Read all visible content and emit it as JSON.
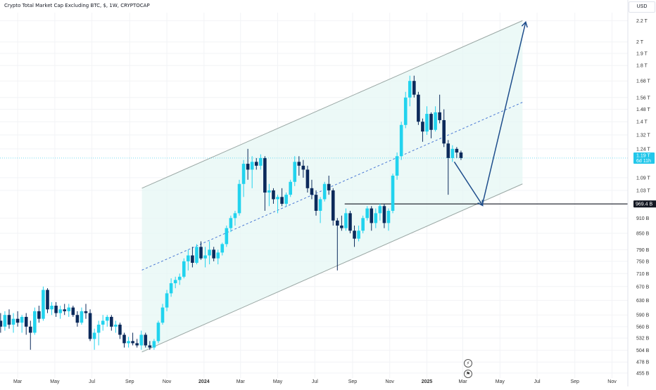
{
  "header": {
    "title": "Crypto Total Market Cap Excluding BTC, $, 1W, CRYPTOCAP",
    "currency": "USD"
  },
  "colors": {
    "up": "#22d3ee",
    "down": "#0c2a5b",
    "channel_fill": "#e6f7f4",
    "channel_line": "#9aa7a4",
    "mid_line": "#4a78d4",
    "arrow": "#1f4e8c",
    "price_badge": "#22c7ea",
    "level_badge": "#131722",
    "grid": "#f2f3f6"
  },
  "footer": {
    "icon_top": "compass-icon",
    "icon_bottom": "flag-icon"
  },
  "chart_data": {
    "type": "candlestick",
    "title": "Crypto Total Market Cap Excluding BTC, $, 1W, CRYPTOCAP",
    "y_scale": "log",
    "y_unit": "USD",
    "ylim": [
      445,
      2280
    ],
    "y_ticks": [
      {
        "v": 455,
        "label": "455 B"
      },
      {
        "v": 478,
        "label": "478 B"
      },
      {
        "v": 504,
        "label": "504 B"
      },
      {
        "v": 532,
        "label": "532 B"
      },
      {
        "v": 560,
        "label": "560 B"
      },
      {
        "v": 590,
        "label": "590 B"
      },
      {
        "v": 630,
        "label": "630 B"
      },
      {
        "v": 670,
        "label": "670 B"
      },
      {
        "v": 710,
        "label": "710 B"
      },
      {
        "v": 750,
        "label": "750 B"
      },
      {
        "v": 790,
        "label": "790 B"
      },
      {
        "v": 850,
        "label": "850 B"
      },
      {
        "v": 910,
        "label": "910 B"
      },
      {
        "v": 1030,
        "label": "1.03 T"
      },
      {
        "v": 1090,
        "label": "1.09 T"
      },
      {
        "v": 1240,
        "label": "1.24 T"
      },
      {
        "v": 1320,
        "label": "1.32 T"
      },
      {
        "v": 1400,
        "label": "1.4 T"
      },
      {
        "v": 1480,
        "label": "1.48 T"
      },
      {
        "v": 1560,
        "label": "1.56 T"
      },
      {
        "v": 1680,
        "label": "1.68 T"
      },
      {
        "v": 1800,
        "label": "1.8 T"
      },
      {
        "v": 1900,
        "label": "1.9 T"
      },
      {
        "v": 2000,
        "label": "2 T"
      },
      {
        "v": 2200,
        "label": "2.2 T"
      }
    ],
    "x_ticks": [
      {
        "date": "2023-03-01",
        "label": "Mar"
      },
      {
        "date": "2023-05-01",
        "label": "May"
      },
      {
        "date": "2023-07-01",
        "label": "Jul"
      },
      {
        "date": "2023-09-01",
        "label": "Sep"
      },
      {
        "date": "2023-11-01",
        "label": "Nov"
      },
      {
        "date": "2024-01-01",
        "label": "2024",
        "bold": true
      },
      {
        "date": "2024-03-01",
        "label": "Mar"
      },
      {
        "date": "2024-05-01",
        "label": "May"
      },
      {
        "date": "2024-07-01",
        "label": "Jul"
      },
      {
        "date": "2024-09-01",
        "label": "Sep"
      },
      {
        "date": "2024-11-01",
        "label": "Nov"
      },
      {
        "date": "2025-01-01",
        "label": "2025",
        "bold": true
      },
      {
        "date": "2025-03-01",
        "label": "Mar"
      },
      {
        "date": "2025-05-01",
        "label": "May"
      },
      {
        "date": "2025-07-01",
        "label": "Jul"
      },
      {
        "date": "2025-09-01",
        "label": "Sep"
      },
      {
        "date": "2025-11-01",
        "label": "Nov"
      }
    ],
    "xlim": [
      "2023-01-31",
      "2025-11-27"
    ],
    "current_price": {
      "value": 1190,
      "label": "1.19 T",
      "sublabel": "6d 11h"
    },
    "level": {
      "value": 969.4,
      "label": "969.4 B",
      "from": "2024-08-19"
    },
    "channel": {
      "lower_start": {
        "date": "2023-09-21",
        "value": 500
      },
      "lower_end": {
        "date": "2025-06-07",
        "value": 1060
      },
      "upper_start": {
        "date": "2023-09-21",
        "value": 1040
      },
      "upper_end": {
        "date": "2025-06-07",
        "value": 2200
      }
    },
    "projection": [
      {
        "date": "2025-02-15",
        "value": 1170
      },
      {
        "date": "2025-04-02",
        "value": 965
      },
      {
        "date": "2025-06-12",
        "value": 2180
      }
    ],
    "candles": [
      {
        "t": "2023-02-01",
        "o": 575,
        "h": 595,
        "l": 545,
        "c": 560
      },
      {
        "t": "2023-02-08",
        "o": 560,
        "h": 600,
        "l": 550,
        "c": 590
      },
      {
        "t": "2023-02-15",
        "o": 590,
        "h": 605,
        "l": 555,
        "c": 565
      },
      {
        "t": "2023-02-22",
        "o": 565,
        "h": 595,
        "l": 545,
        "c": 580
      },
      {
        "t": "2023-03-01",
        "o": 580,
        "h": 600,
        "l": 560,
        "c": 570
      },
      {
        "t": "2023-03-08",
        "o": 570,
        "h": 590,
        "l": 545,
        "c": 585
      },
      {
        "t": "2023-03-15",
        "o": 585,
        "h": 595,
        "l": 540,
        "c": 560
      },
      {
        "t": "2023-03-22",
        "o": 560,
        "h": 575,
        "l": 505,
        "c": 545
      },
      {
        "t": "2023-03-29",
        "o": 545,
        "h": 610,
        "l": 540,
        "c": 600
      },
      {
        "t": "2023-04-05",
        "o": 600,
        "h": 615,
        "l": 570,
        "c": 580
      },
      {
        "t": "2023-04-12",
        "o": 580,
        "h": 670,
        "l": 575,
        "c": 660
      },
      {
        "t": "2023-04-19",
        "o": 660,
        "h": 665,
        "l": 595,
        "c": 605
      },
      {
        "t": "2023-04-26",
        "o": 605,
        "h": 625,
        "l": 590,
        "c": 615
      },
      {
        "t": "2023-05-03",
        "o": 615,
        "h": 625,
        "l": 585,
        "c": 595
      },
      {
        "t": "2023-05-10",
        "o": 595,
        "h": 615,
        "l": 580,
        "c": 605
      },
      {
        "t": "2023-05-17",
        "o": 605,
        "h": 620,
        "l": 590,
        "c": 600
      },
      {
        "t": "2023-05-24",
        "o": 600,
        "h": 620,
        "l": 585,
        "c": 610
      },
      {
        "t": "2023-05-31",
        "o": 610,
        "h": 615,
        "l": 585,
        "c": 590
      },
      {
        "t": "2023-06-07",
        "o": 590,
        "h": 600,
        "l": 560,
        "c": 570
      },
      {
        "t": "2023-06-14",
        "o": 570,
        "h": 610,
        "l": 565,
        "c": 600
      },
      {
        "t": "2023-06-21",
        "o": 600,
        "h": 620,
        "l": 580,
        "c": 595
      },
      {
        "t": "2023-06-28",
        "o": 595,
        "h": 605,
        "l": 525,
        "c": 530
      },
      {
        "t": "2023-07-05",
        "o": 530,
        "h": 555,
        "l": 505,
        "c": 545
      },
      {
        "t": "2023-07-12",
        "o": 545,
        "h": 575,
        "l": 515,
        "c": 565
      },
      {
        "t": "2023-07-19",
        "o": 565,
        "h": 590,
        "l": 550,
        "c": 575
      },
      {
        "t": "2023-07-26",
        "o": 575,
        "h": 590,
        "l": 560,
        "c": 585
      },
      {
        "t": "2023-08-02",
        "o": 585,
        "h": 590,
        "l": 550,
        "c": 560
      },
      {
        "t": "2023-08-09",
        "o": 560,
        "h": 575,
        "l": 545,
        "c": 565
      },
      {
        "t": "2023-08-16",
        "o": 565,
        "h": 570,
        "l": 530,
        "c": 540
      },
      {
        "t": "2023-08-23",
        "o": 540,
        "h": 545,
        "l": 510,
        "c": 520
      },
      {
        "t": "2023-08-30",
        "o": 520,
        "h": 535,
        "l": 510,
        "c": 525
      },
      {
        "t": "2023-09-06",
        "o": 525,
        "h": 545,
        "l": 515,
        "c": 520
      },
      {
        "t": "2023-09-13",
        "o": 520,
        "h": 530,
        "l": 510,
        "c": 515
      },
      {
        "t": "2023-09-20",
        "o": 515,
        "h": 550,
        "l": 505,
        "c": 540
      },
      {
        "t": "2023-09-27",
        "o": 540,
        "h": 545,
        "l": 510,
        "c": 515
      },
      {
        "t": "2023-10-04",
        "o": 515,
        "h": 525,
        "l": 505,
        "c": 510
      },
      {
        "t": "2023-10-11",
        "o": 510,
        "h": 530,
        "l": 505,
        "c": 525
      },
      {
        "t": "2023-10-18",
        "o": 525,
        "h": 575,
        "l": 520,
        "c": 570
      },
      {
        "t": "2023-10-25",
        "o": 570,
        "h": 620,
        "l": 565,
        "c": 610
      },
      {
        "t": "2023-11-01",
        "o": 610,
        "h": 660,
        "l": 600,
        "c": 650
      },
      {
        "t": "2023-11-08",
        "o": 650,
        "h": 695,
        "l": 640,
        "c": 680
      },
      {
        "t": "2023-11-15",
        "o": 680,
        "h": 700,
        "l": 665,
        "c": 690
      },
      {
        "t": "2023-11-22",
        "o": 690,
        "h": 710,
        "l": 675,
        "c": 700
      },
      {
        "t": "2023-11-29",
        "o": 700,
        "h": 760,
        "l": 695,
        "c": 750
      },
      {
        "t": "2023-12-06",
        "o": 750,
        "h": 790,
        "l": 720,
        "c": 770
      },
      {
        "t": "2023-12-13",
        "o": 770,
        "h": 800,
        "l": 730,
        "c": 745
      },
      {
        "t": "2023-12-20",
        "o": 745,
        "h": 810,
        "l": 740,
        "c": 800
      },
      {
        "t": "2023-12-27",
        "o": 800,
        "h": 820,
        "l": 755,
        "c": 760
      },
      {
        "t": "2024-01-03",
        "o": 760,
        "h": 800,
        "l": 730,
        "c": 770
      },
      {
        "t": "2024-01-10",
        "o": 770,
        "h": 820,
        "l": 740,
        "c": 790
      },
      {
        "t": "2024-01-17",
        "o": 790,
        "h": 800,
        "l": 750,
        "c": 760
      },
      {
        "t": "2024-01-24",
        "o": 760,
        "h": 790,
        "l": 740,
        "c": 780
      },
      {
        "t": "2024-01-31",
        "o": 780,
        "h": 815,
        "l": 770,
        "c": 810
      },
      {
        "t": "2024-02-07",
        "o": 810,
        "h": 880,
        "l": 800,
        "c": 870
      },
      {
        "t": "2024-02-14",
        "o": 870,
        "h": 920,
        "l": 855,
        "c": 910
      },
      {
        "t": "2024-02-21",
        "o": 910,
        "h": 940,
        "l": 880,
        "c": 930
      },
      {
        "t": "2024-02-28",
        "o": 930,
        "h": 1080,
        "l": 920,
        "c": 1060
      },
      {
        "t": "2024-03-06",
        "o": 1060,
        "h": 1180,
        "l": 1000,
        "c": 1160
      },
      {
        "t": "2024-03-13",
        "o": 1160,
        "h": 1240,
        "l": 1080,
        "c": 1130
      },
      {
        "t": "2024-03-20",
        "o": 1130,
        "h": 1200,
        "l": 1040,
        "c": 1170
      },
      {
        "t": "2024-03-27",
        "o": 1170,
        "h": 1190,
        "l": 1130,
        "c": 1150
      },
      {
        "t": "2024-04-03",
        "o": 1150,
        "h": 1210,
        "l": 1130,
        "c": 1190
      },
      {
        "t": "2024-04-10",
        "o": 1190,
        "h": 1200,
        "l": 940,
        "c": 1020
      },
      {
        "t": "2024-04-17",
        "o": 1020,
        "h": 1060,
        "l": 960,
        "c": 1030
      },
      {
        "t": "2024-04-24",
        "o": 1030,
        "h": 1040,
        "l": 970,
        "c": 990
      },
      {
        "t": "2024-05-01",
        "o": 990,
        "h": 1010,
        "l": 930,
        "c": 1000
      },
      {
        "t": "2024-05-08",
        "o": 1000,
        "h": 1040,
        "l": 960,
        "c": 970
      },
      {
        "t": "2024-05-15",
        "o": 970,
        "h": 1020,
        "l": 960,
        "c": 1010
      },
      {
        "t": "2024-05-22",
        "o": 1010,
        "h": 1080,
        "l": 1000,
        "c": 1070
      },
      {
        "t": "2024-05-29",
        "o": 1070,
        "h": 1200,
        "l": 1050,
        "c": 1170
      },
      {
        "t": "2024-06-05",
        "o": 1170,
        "h": 1200,
        "l": 1100,
        "c": 1150
      },
      {
        "t": "2024-06-12",
        "o": 1150,
        "h": 1180,
        "l": 1090,
        "c": 1130
      },
      {
        "t": "2024-06-19",
        "o": 1130,
        "h": 1150,
        "l": 1020,
        "c": 1040
      },
      {
        "t": "2024-06-26",
        "o": 1040,
        "h": 1080,
        "l": 990,
        "c": 1010
      },
      {
        "t": "2024-07-03",
        "o": 1010,
        "h": 1030,
        "l": 920,
        "c": 940
      },
      {
        "t": "2024-07-10",
        "o": 940,
        "h": 1000,
        "l": 890,
        "c": 990
      },
      {
        "t": "2024-07-17",
        "o": 990,
        "h": 1070,
        "l": 980,
        "c": 1060
      },
      {
        "t": "2024-07-24",
        "o": 1060,
        "h": 1100,
        "l": 1010,
        "c": 1030
      },
      {
        "t": "2024-07-31",
        "o": 1030,
        "h": 1040,
        "l": 880,
        "c": 900
      },
      {
        "t": "2024-08-07",
        "o": 900,
        "h": 910,
        "l": 720,
        "c": 880
      },
      {
        "t": "2024-08-14",
        "o": 880,
        "h": 920,
        "l": 860,
        "c": 870
      },
      {
        "t": "2024-08-21",
        "o": 870,
        "h": 950,
        "l": 860,
        "c": 930
      },
      {
        "t": "2024-08-28",
        "o": 930,
        "h": 940,
        "l": 850,
        "c": 860
      },
      {
        "t": "2024-09-04",
        "o": 860,
        "h": 880,
        "l": 800,
        "c": 830
      },
      {
        "t": "2024-09-11",
        "o": 830,
        "h": 880,
        "l": 820,
        "c": 860
      },
      {
        "t": "2024-09-18",
        "o": 860,
        "h": 920,
        "l": 850,
        "c": 910
      },
      {
        "t": "2024-09-25",
        "o": 910,
        "h": 960,
        "l": 900,
        "c": 950
      },
      {
        "t": "2024-10-02",
        "o": 950,
        "h": 960,
        "l": 860,
        "c": 890
      },
      {
        "t": "2024-10-09",
        "o": 890,
        "h": 950,
        "l": 870,
        "c": 930
      },
      {
        "t": "2024-10-16",
        "o": 930,
        "h": 970,
        "l": 900,
        "c": 960
      },
      {
        "t": "2024-10-23",
        "o": 960,
        "h": 970,
        "l": 870,
        "c": 890
      },
      {
        "t": "2024-10-30",
        "o": 890,
        "h": 950,
        "l": 860,
        "c": 940
      },
      {
        "t": "2024-11-06",
        "o": 940,
        "h": 1110,
        "l": 930,
        "c": 1100
      },
      {
        "t": "2024-11-13",
        "o": 1100,
        "h": 1220,
        "l": 1080,
        "c": 1200
      },
      {
        "t": "2024-11-20",
        "o": 1200,
        "h": 1400,
        "l": 1180,
        "c": 1380
      },
      {
        "t": "2024-11-27",
        "o": 1380,
        "h": 1600,
        "l": 1360,
        "c": 1560
      },
      {
        "t": "2024-12-04",
        "o": 1560,
        "h": 1720,
        "l": 1500,
        "c": 1680
      },
      {
        "t": "2024-12-11",
        "o": 1680,
        "h": 1720,
        "l": 1560,
        "c": 1580
      },
      {
        "t": "2024-12-18",
        "o": 1580,
        "h": 1600,
        "l": 1380,
        "c": 1400
      },
      {
        "t": "2024-12-25",
        "o": 1400,
        "h": 1420,
        "l": 1280,
        "c": 1340
      },
      {
        "t": "2025-01-01",
        "o": 1340,
        "h": 1500,
        "l": 1320,
        "c": 1450
      },
      {
        "t": "2025-01-08",
        "o": 1450,
        "h": 1460,
        "l": 1300,
        "c": 1350
      },
      {
        "t": "2025-01-15",
        "o": 1350,
        "h": 1500,
        "l": 1340,
        "c": 1460
      },
      {
        "t": "2025-01-22",
        "o": 1460,
        "h": 1580,
        "l": 1390,
        "c": 1410
      },
      {
        "t": "2025-01-29",
        "o": 1410,
        "h": 1480,
        "l": 1250,
        "c": 1270
      },
      {
        "t": "2025-02-05",
        "o": 1270,
        "h": 1290,
        "l": 1010,
        "c": 1190
      },
      {
        "t": "2025-02-12",
        "o": 1190,
        "h": 1260,
        "l": 1170,
        "c": 1240
      },
      {
        "t": "2025-02-19",
        "o": 1240,
        "h": 1250,
        "l": 1190,
        "c": 1220
      },
      {
        "t": "2025-02-26",
        "o": 1220,
        "h": 1230,
        "l": 1180,
        "c": 1190
      }
    ]
  }
}
